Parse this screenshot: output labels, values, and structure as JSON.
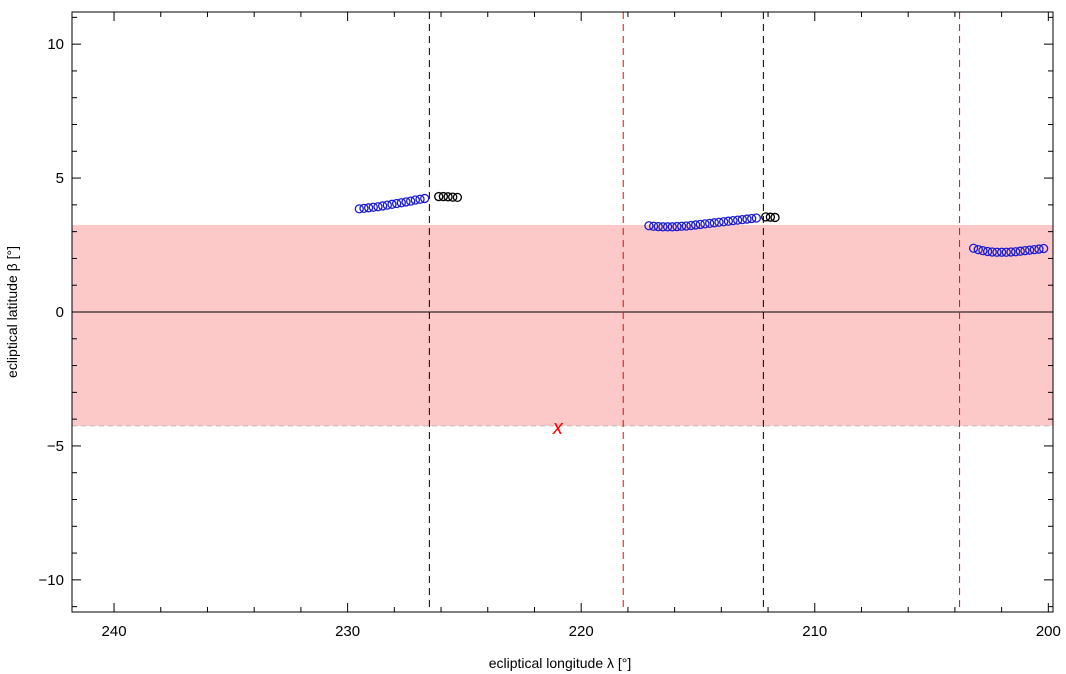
{
  "chart_data": {
    "type": "scatter",
    "xlabel": "ecliptical  longitude  λ [°]",
    "ylabel": "ecliptical  latitude  β [°]",
    "xlim": [
      241.8,
      199.8
    ],
    "ylim": [
      -11.2,
      11.2
    ],
    "x_reversed": true,
    "x_ticks": [
      240,
      230,
      220,
      210,
      200
    ],
    "y_ticks": [
      -10,
      -5,
      0,
      5,
      10
    ],
    "grid": false,
    "band": {
      "y_range": [
        -4.25,
        3.25
      ],
      "color": "#fdc8c8"
    },
    "zero_line": 0,
    "vlines_black": [
      226.5,
      212.2
    ],
    "vlines_red": [
      218.2,
      203.8
    ],
    "marker_label": {
      "text": "x",
      "x": 221.0,
      "y": -4.3,
      "color": "#ff0000"
    },
    "series": [
      {
        "color": "#1c1ccf",
        "points": [
          [
            229.5,
            3.85
          ],
          [
            229.3,
            3.87
          ],
          [
            229.1,
            3.89
          ],
          [
            228.9,
            3.91
          ],
          [
            228.7,
            3.93
          ],
          [
            228.5,
            3.96
          ],
          [
            228.3,
            3.99
          ],
          [
            228.1,
            4.02
          ],
          [
            227.9,
            4.05
          ],
          [
            227.7,
            4.08
          ],
          [
            227.5,
            4.11
          ],
          [
            227.3,
            4.14
          ],
          [
            227.1,
            4.18
          ],
          [
            226.9,
            4.21
          ],
          [
            226.7,
            4.24
          ],
          [
            217.1,
            3.22
          ],
          [
            216.9,
            3.2
          ],
          [
            216.7,
            3.19
          ],
          [
            216.5,
            3.18
          ],
          [
            216.3,
            3.18
          ],
          [
            216.1,
            3.18
          ],
          [
            215.9,
            3.19
          ],
          [
            215.7,
            3.2
          ],
          [
            215.5,
            3.21
          ],
          [
            215.3,
            3.23
          ],
          [
            215.1,
            3.25
          ],
          [
            214.9,
            3.27
          ],
          [
            214.7,
            3.29
          ],
          [
            214.5,
            3.31
          ],
          [
            214.3,
            3.33
          ],
          [
            214.1,
            3.35
          ],
          [
            213.9,
            3.37
          ],
          [
            213.7,
            3.39
          ],
          [
            213.5,
            3.41
          ],
          [
            213.3,
            3.43
          ],
          [
            213.1,
            3.45
          ],
          [
            212.9,
            3.47
          ],
          [
            212.7,
            3.49
          ],
          [
            212.5,
            3.51
          ],
          [
            203.2,
            2.38
          ],
          [
            203.0,
            2.33
          ],
          [
            202.8,
            2.29
          ],
          [
            202.6,
            2.26
          ],
          [
            202.4,
            2.24
          ],
          [
            202.2,
            2.23
          ],
          [
            202.0,
            2.23
          ],
          [
            201.8,
            2.23
          ],
          [
            201.6,
            2.24
          ],
          [
            201.4,
            2.25
          ],
          [
            201.2,
            2.27
          ],
          [
            201.0,
            2.29
          ],
          [
            200.8,
            2.31
          ],
          [
            200.6,
            2.33
          ],
          [
            200.4,
            2.35
          ],
          [
            200.2,
            2.37
          ]
        ]
      },
      {
        "color": "#000000",
        "points": [
          [
            226.1,
            4.31
          ],
          [
            225.9,
            4.31
          ],
          [
            225.7,
            4.3
          ],
          [
            225.5,
            4.29
          ],
          [
            225.3,
            4.28
          ],
          [
            212.1,
            3.55
          ],
          [
            211.9,
            3.54
          ],
          [
            211.7,
            3.53
          ]
        ]
      }
    ]
  }
}
